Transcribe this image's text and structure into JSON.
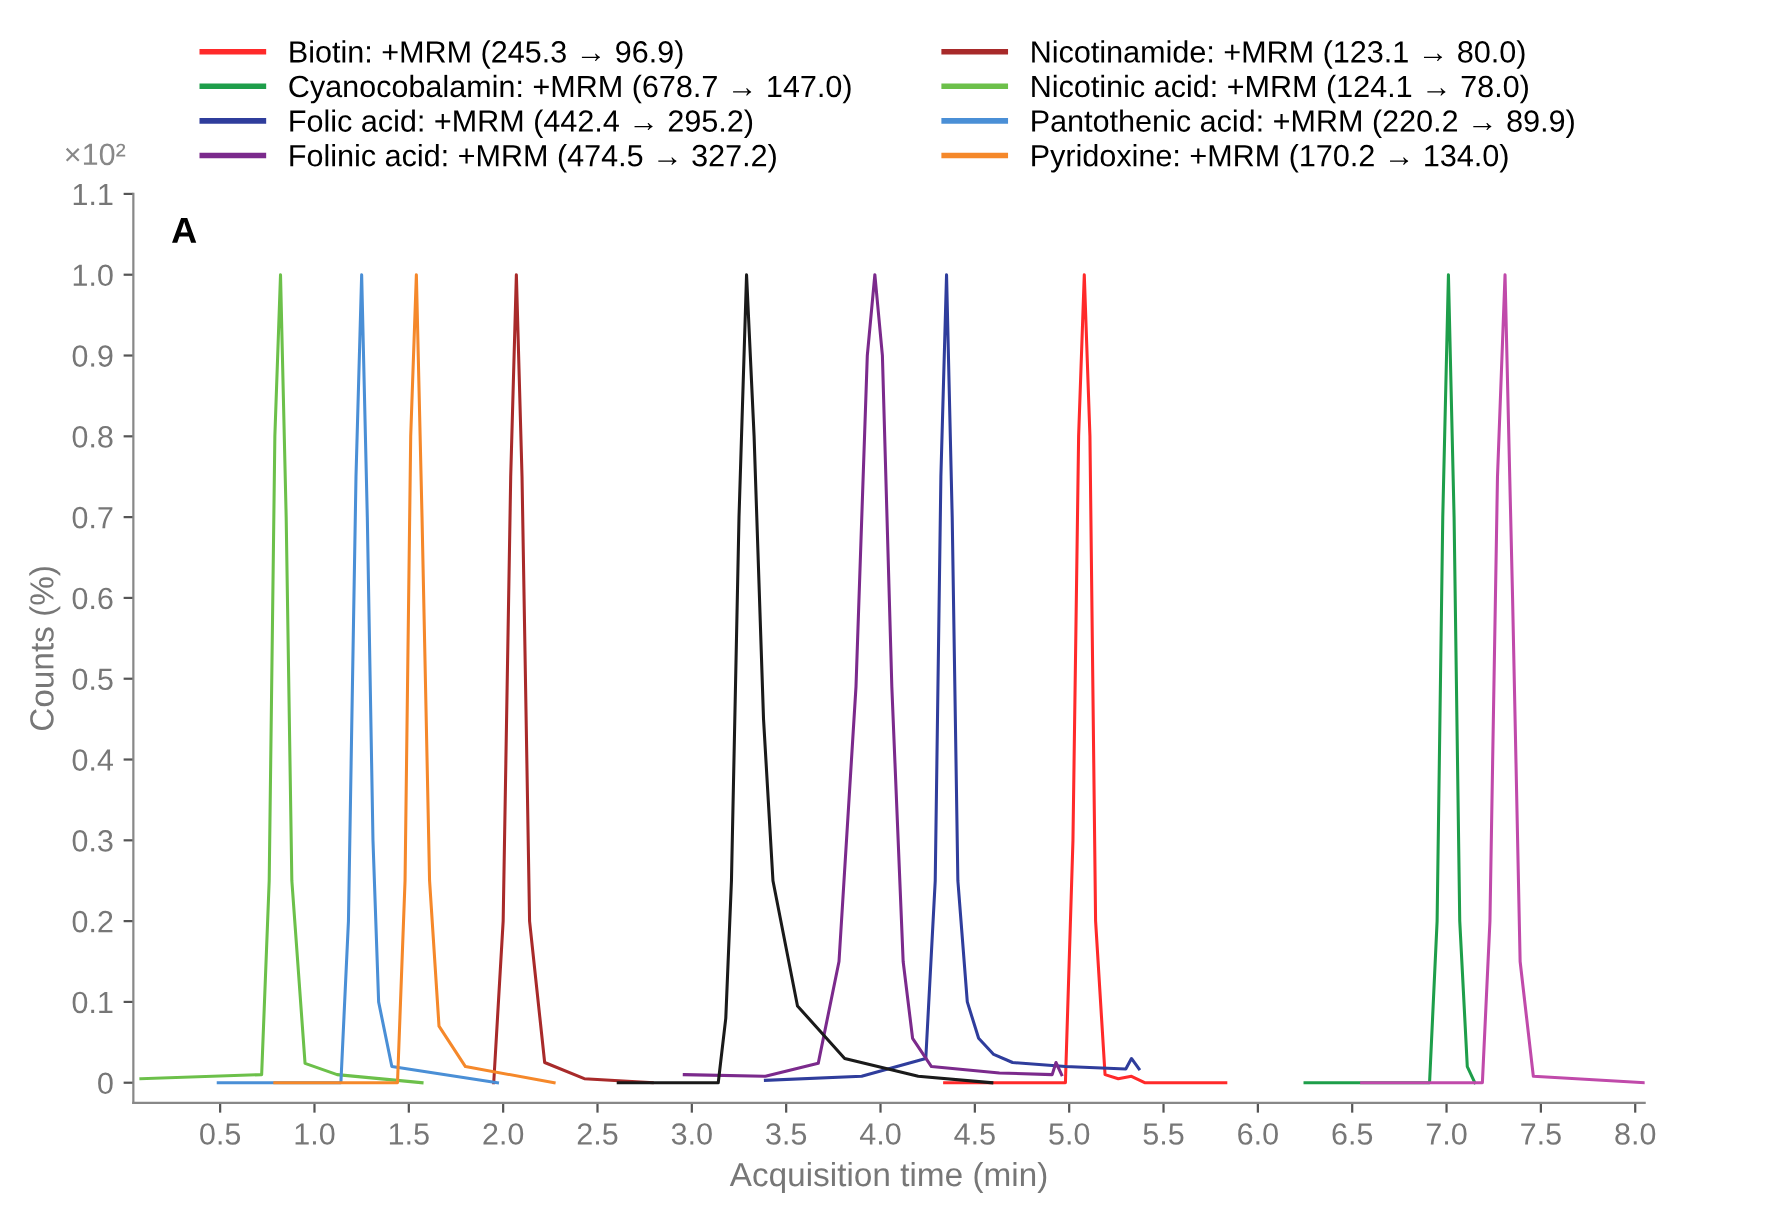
{
  "chart_data": {
    "type": "line",
    "xlabel": "Acquisition time (min)",
    "ylabel": "Counts (%)",
    "annotations": [
      "A",
      "×10²"
    ],
    "xlim": [
      0.04,
      8.05
    ],
    "ylim": [
      -0.025,
      1.1
    ],
    "xticks": [
      0.5,
      {
        "value": 1,
        "label": "1.0"
      },
      1.5,
      {
        "value": 2,
        "label": "2.0"
      },
      2.5,
      {
        "value": 3,
        "label": "3.0"
      },
      3.5,
      {
        "value": 4,
        "label": "4.0"
      },
      4.5,
      {
        "value": 5,
        "label": "5.0"
      },
      5.5,
      {
        "value": 6,
        "label": "6.0"
      },
      6.5,
      {
        "value": 7,
        "label": "7.0"
      },
      7.5,
      {
        "value": 8,
        "label": "8.0"
      }
    ],
    "yticks": [
      0,
      0.1,
      0.2,
      0.3,
      0.4,
      0.5,
      0.6,
      0.7,
      0.8,
      0.9,
      {
        "value": 1,
        "label": "1.0"
      },
      1.1
    ],
    "grid": false,
    "legend": "top",
    "marker": "none",
    "line_style": "solid",
    "series": [
      {
        "name": "Biotin: +MRM (245.3 → 96.9)",
        "color": "#ff2a2a",
        "x": [
          4.34,
          4.98,
          5.02,
          5.05,
          5.08,
          5.11,
          5.14,
          5.19,
          5.26,
          5.33,
          5.4,
          5.83
        ],
        "values": [
          0,
          0,
          0.3,
          0.8,
          1.0,
          0.8,
          0.2,
          0.01,
          0.005,
          0.008,
          0,
          0
        ]
      },
      {
        "name": "Cyanocobalamin: +MRM (678.7 → 147.0)",
        "color": "#1e9e4a",
        "x": [
          6.25,
          6.91,
          6.95,
          6.98,
          7.01,
          7.04,
          7.07,
          7.11,
          7.15
        ],
        "values": [
          0,
          0,
          0.2,
          0.7,
          1.0,
          0.7,
          0.2,
          0.02,
          0
        ]
      },
      {
        "name": "Folic acid: +MRM (442.4 → 295.2)",
        "color": "#2f3d9c",
        "x": [
          3.39,
          3.9,
          4.24,
          4.29,
          4.32,
          4.35,
          4.38,
          4.41,
          4.46,
          4.52,
          4.6,
          4.7,
          4.98,
          5.3,
          5.33,
          5.37
        ],
        "values": [
          0.003,
          0.008,
          0.03,
          0.25,
          0.75,
          1.0,
          0.7,
          0.25,
          0.1,
          0.055,
          0.035,
          0.025,
          0.02,
          0.017,
          0.03,
          0.017
        ]
      },
      {
        "name": "Folinic acid: +MRM (474.5 → 327.2)",
        "color": "#7b2a8c",
        "x": [
          2.96,
          3.39,
          3.67,
          3.78,
          3.87,
          3.93,
          3.97,
          4.01,
          4.06,
          4.12,
          4.17,
          4.27,
          4.63,
          4.91,
          4.93,
          4.96
        ],
        "values": [
          0.01,
          0.008,
          0.024,
          0.15,
          0.49,
          0.9,
          1.0,
          0.9,
          0.49,
          0.15,
          0.055,
          0.02,
          0.012,
          0.01,
          0.025,
          0.01
        ]
      },
      {
        "name": "Nicotinamide: +MRM (123.1 → 80.0)",
        "color": "#a82a2a",
        "x": [
          1.95,
          2.0,
          2.04,
          2.07,
          2.1,
          2.14,
          2.22,
          2.43,
          2.79
        ],
        "values": [
          0,
          0.2,
          0.75,
          1.0,
          0.75,
          0.2,
          0.025,
          0.005,
          0
        ]
      },
      {
        "name": "Nicotinic acid: +MRM (124.1 → 78.0)",
        "color": "#6cc04a",
        "x": [
          0.08,
          0.72,
          0.76,
          0.79,
          0.82,
          0.85,
          0.88,
          0.95,
          1.12,
          1.57
        ],
        "values": [
          0.005,
          0.01,
          0.25,
          0.8,
          1.0,
          0.7,
          0.25,
          0.024,
          0.01,
          0
        ]
      },
      {
        "name": "Pantothenic acid: +MRM (220.2 → 89.9)",
        "color": "#4a8fd6",
        "x": [
          0.49,
          1.14,
          1.18,
          1.22,
          1.25,
          1.28,
          1.31,
          1.34,
          1.41,
          1.97
        ],
        "values": [
          0,
          0,
          0.2,
          0.75,
          1.0,
          0.7,
          0.3,
          0.1,
          0.02,
          0
        ]
      },
      {
        "name": "Pyridoxine: +MRM (170.2 → 134.0)",
        "color": "#f5882a",
        "x": [
          0.79,
          1.44,
          1.48,
          1.51,
          1.54,
          1.57,
          1.61,
          1.66,
          1.8,
          2.27
        ],
        "values": [
          0,
          0,
          0.25,
          0.8,
          1.0,
          0.7,
          0.25,
          0.07,
          0.02,
          0
        ]
      },
      {
        "color": "#1a1a1a",
        "x": [
          2.61,
          3.14,
          3.18,
          3.21,
          3.25,
          3.29,
          3.33,
          3.38,
          3.43,
          3.56,
          3.81,
          4.2,
          4.59
        ],
        "values": [
          0,
          0,
          0.08,
          0.25,
          0.7,
          1.0,
          0.8,
          0.45,
          0.25,
          0.095,
          0.03,
          0.008,
          0
        ]
      },
      {
        "color": "#c04aaa",
        "x": [
          6.55,
          7.19,
          7.23,
          7.27,
          7.31,
          7.35,
          7.39,
          7.46,
          8.05
        ],
        "values": [
          0,
          0,
          0.2,
          0.75,
          1.0,
          0.6,
          0.15,
          0.008,
          0
        ]
      }
    ]
  }
}
